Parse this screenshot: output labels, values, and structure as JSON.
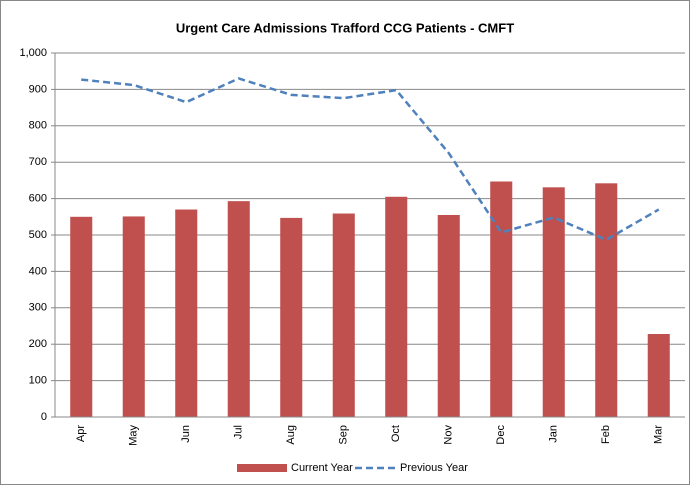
{
  "chart_data": {
    "type": "bar_line",
    "title": "Urgent Care Admissions Trafford CCG Patients - CMFT",
    "categories": [
      "Apr",
      "May",
      "Jun",
      "Jul",
      "Aug",
      "Sep",
      "Oct",
      "Nov",
      "Dec",
      "Jan",
      "Feb",
      "Mar"
    ],
    "series": [
      {
        "name": "Current Year",
        "type": "bar",
        "color": "#c0504d",
        "values": [
          550,
          551,
          570,
          593,
          547,
          559,
          605,
          555,
          647,
          631,
          642,
          228
        ]
      },
      {
        "name": "Previous Year",
        "type": "line",
        "color": "#4f81bd",
        "dashed": true,
        "values": [
          927,
          912,
          865,
          930,
          885,
          876,
          898,
          725,
          507,
          548,
          487,
          570
        ]
      }
    ],
    "ylim": [
      0,
      1000
    ],
    "yticks": [
      0,
      100,
      200,
      300,
      400,
      500,
      600,
      700,
      800,
      900,
      {
        "value": 1000,
        "label": "1,000"
      }
    ],
    "grid": true,
    "legend": "bottom"
  }
}
